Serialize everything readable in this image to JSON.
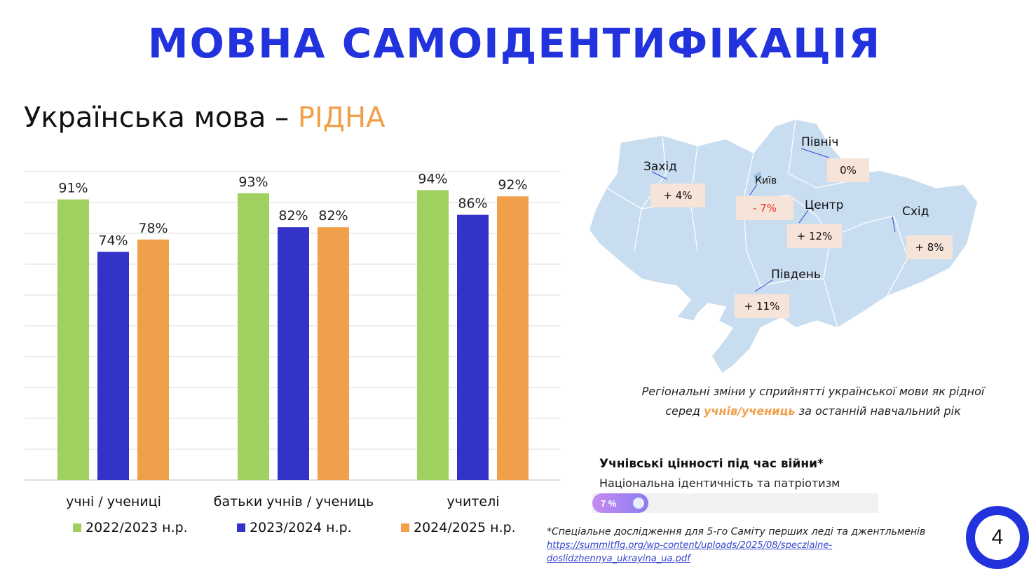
{
  "title": "МОВНА САМОІДЕНТИФІКАЦІЯ",
  "subtitle": {
    "prefix": "Українська мова – ",
    "highlight": "РІДНА"
  },
  "chart_data": {
    "type": "bar",
    "categories": [
      "учні / учениці",
      "батьки учнів / учениць",
      "учителі"
    ],
    "series": [
      {
        "name": "2022/2023 н.р.",
        "color": "#a0d060",
        "values": [
          91,
          93,
          94
        ]
      },
      {
        "name": "2023/2024 н.р.",
        "color": "#3333c8",
        "values": [
          74,
          82,
          86
        ]
      },
      {
        "name": "2024/2025 н.р.",
        "color": "#f0a04a",
        "values": [
          78,
          82,
          92
        ]
      }
    ],
    "ylim": [
      0,
      100
    ],
    "grid": true,
    "value_suffix": "%",
    "legend_placement": "bottom"
  },
  "map": {
    "regions": [
      {
        "name": "Захід",
        "change": "+ 4%"
      },
      {
        "name": "Київ",
        "change": "- 7%",
        "negative": true
      },
      {
        "name": "Північ",
        "change": "0%"
      },
      {
        "name": "Центр",
        "change": "+ 12%"
      },
      {
        "name": "Схід",
        "change": "+ 8%"
      },
      {
        "name": "Південь",
        "change": "+ 11%"
      }
    ],
    "caption_line1": "Регіональні зміни у сприйнятті української мови як рідної",
    "caption_pre": "серед ",
    "caption_hl": "учнів/учениць",
    "caption_post": " за останній навчальний рік"
  },
  "values": {
    "title": "Учнівські цінності під час війни*",
    "item": "Національна ідентичність та патріотизм",
    "percent_label": "7 %",
    "percent": 7
  },
  "footnote": {
    "text": "*Спеціальне дослідження для 5-го Саміту перших леді та джентльменів",
    "link_line1": "https://summitflg.org/wp-content/uploads/2025/08/speczialne-",
    "link_line2": "doslidzhennya_ukrayina_ua.pdf"
  },
  "page_number": "4"
}
